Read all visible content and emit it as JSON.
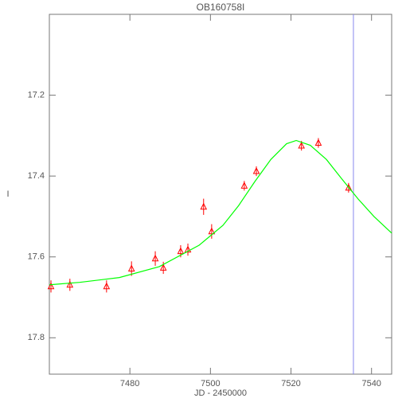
{
  "chart_data": {
    "type": "scatter",
    "title": "OB160758I",
    "x_label": "JD - 2450000",
    "y_label": "I",
    "xlim": [
      7460,
      7545
    ],
    "ylim": [
      17.0,
      17.89
    ],
    "y_inverted": true,
    "xticks": [
      7480,
      7500,
      7520,
      7540
    ],
    "yticks": [
      17.2,
      17.4,
      17.6,
      17.8
    ],
    "series": [
      {
        "color": "#ff0000",
        "x": [
          7460.4,
          7465.1,
          7474.2,
          7480.4,
          7486.3,
          7488.3,
          7492.6,
          7494.4,
          7498.3,
          7500.3,
          7508.4,
          7511.4,
          7522.6,
          7526.8,
          7534.3
        ],
        "values": [
          17.673,
          17.669,
          17.673,
          17.629,
          17.604,
          17.627,
          17.586,
          17.582,
          17.476,
          17.537,
          17.424,
          17.388,
          17.325,
          17.318,
          17.429
        ],
        "errors": [
          0.015,
          0.015,
          0.015,
          0.018,
          0.018,
          0.015,
          0.015,
          0.015,
          0.02,
          0.018,
          0.012,
          0.012,
          0.012,
          0.012,
          0.012
        ]
      },
      {
        "type": "line",
        "color": "#00ff00",
        "x": [
          7460.0,
          7467.5,
          7477.4,
          7487.3,
          7497.2,
          7503.1,
          7507.0,
          7511.0,
          7515.0,
          7518.9,
          7521.3,
          7524.8,
          7528.8,
          7532.7,
          7536.7,
          7540.6,
          7545.0
        ],
        "values": [
          17.669,
          17.663,
          17.651,
          17.624,
          17.571,
          17.522,
          17.473,
          17.414,
          17.359,
          17.32,
          17.312,
          17.324,
          17.359,
          17.408,
          17.457,
          17.5,
          17.541
        ]
      }
    ],
    "vline": {
      "x": 7535.5,
      "color": "#8888ee"
    }
  }
}
